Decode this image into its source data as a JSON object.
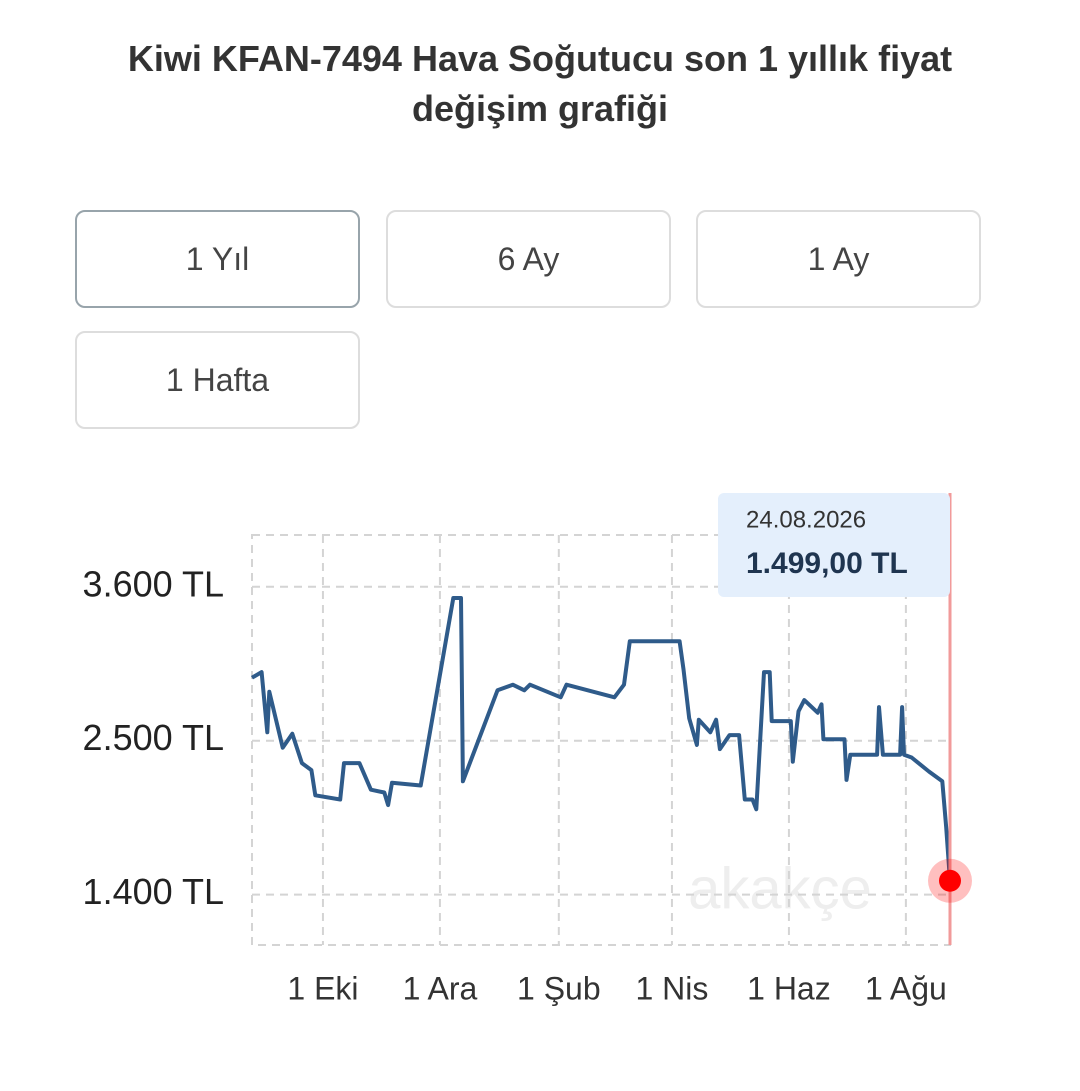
{
  "chart_data": {
    "type": "line",
    "title": "Kiwi KFAN-7494 Hava Soğutucu son 1 yıllık fiyat değişim grafiği",
    "buttons": [
      "1 Yıl",
      "6 Ay",
      "1 Ay",
      "1 Hafta"
    ],
    "x": [
      "2025-08-25",
      "2025-08-30",
      "2025-09-02",
      "2025-09-03",
      "2025-09-10",
      "2025-09-15",
      "2025-09-20",
      "2025-09-25",
      "2025-09-27",
      "2025-10-10",
      "2025-10-12",
      "2025-10-20",
      "2025-10-26",
      "2025-11-02",
      "2025-11-04",
      "2025-11-06",
      "2025-11-21",
      "2025-12-08",
      "2025-12-12",
      "2025-12-13",
      "2025-12-31",
      "2026-01-08",
      "2026-01-14",
      "2026-01-17",
      "2026-02-02",
      "2026-02-05",
      "2026-03-02",
      "2026-03-07",
      "2026-03-10",
      "2026-04-05",
      "2026-04-07",
      "2026-04-10",
      "2026-04-14",
      "2026-04-15",
      "2026-04-21",
      "2026-04-24",
      "2026-04-26",
      "2026-05-01",
      "2026-05-06",
      "2026-05-09",
      "2026-05-13",
      "2026-05-15",
      "2026-05-19",
      "2026-05-22",
      "2026-05-23",
      "2026-06-02",
      "2026-06-03",
      "2026-06-06",
      "2026-06-09",
      "2026-06-16",
      "2026-06-18",
      "2026-06-19",
      "2026-06-30",
      "2026-07-01",
      "2026-07-03",
      "2026-07-17",
      "2026-07-18",
      "2026-07-20",
      "2026-07-29",
      "2026-07-30",
      "2026-07-31",
      "2026-08-04",
      "2026-08-13",
      "2026-08-20",
      "2026-08-22",
      "2026-08-24"
    ],
    "values": [
      2950,
      2990,
      2560,
      2850,
      2450,
      2550,
      2340,
      2290,
      2110,
      2080,
      2340,
      2340,
      2150,
      2130,
      2040,
      2200,
      2180,
      3520,
      3520,
      2210,
      2860,
      2900,
      2860,
      2900,
      2810,
      2900,
      2810,
      2900,
      3210,
      3210,
      3010,
      2660,
      2470,
      2650,
      2560,
      2650,
      2440,
      2540,
      2540,
      2080,
      2080,
      2010,
      2990,
      2990,
      2640,
      2640,
      2350,
      2710,
      2790,
      2700,
      2760,
      2510,
      2510,
      2220,
      2400,
      2400,
      2740,
      2400,
      2400,
      2740,
      2400,
      2380,
      2280,
      2210,
      1880,
      1499
    ],
    "color": "#2f5b8a",
    "xlim": [
      "2025-08-25",
      "2026-08-24"
    ],
    "xticks": [
      {
        "value": "2025-10-01",
        "label": "1 Eki"
      },
      {
        "value": "2025-12-01",
        "label": "1 Ara"
      },
      {
        "value": "2026-02-01",
        "label": "1 Şub"
      },
      {
        "value": "2026-04-01",
        "label": "1 Nis"
      },
      {
        "value": "2026-06-01",
        "label": "1 Haz"
      },
      {
        "value": "2026-08-01",
        "label": "1 Ağu"
      }
    ],
    "ylim": [
      1040,
      3970
    ],
    "yticks": [
      {
        "value": 1400,
        "label": "1.400 TL"
      },
      {
        "value": 2500,
        "label": "2.500 TL"
      },
      {
        "value": 3600,
        "label": "3.600 TL"
      }
    ],
    "grid": true,
    "tooltip": {
      "date": "24.08.2026",
      "value_label": "1.499,00 TL"
    },
    "watermark": "akakçe"
  }
}
